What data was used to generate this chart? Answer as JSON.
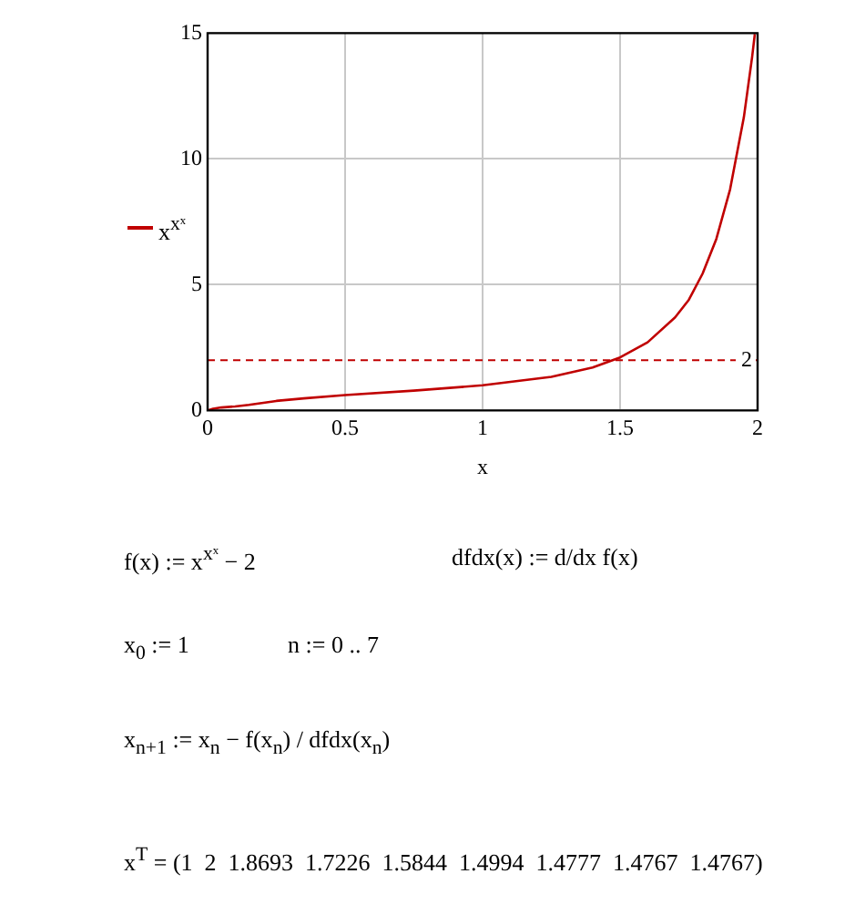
{
  "chart_data": {
    "type": "line",
    "xlabel": "x",
    "xlim": [
      0,
      2
    ],
    "xticks": [
      0,
      0.5,
      1,
      1.5,
      2
    ],
    "ylim": [
      0,
      15
    ],
    "yticks": [
      0,
      5,
      10,
      15
    ],
    "grid": true,
    "legend": "left",
    "marker": "none",
    "line_style": "solid",
    "series": [
      {
        "name": "x$^{xˣ}$",
        "color": "#c00000",
        "x": [
          0,
          0.02,
          0.05,
          0.1,
          0.15,
          0.25,
          0.35,
          0.5,
          0.75,
          1,
          1.25,
          1.4,
          1.5,
          1.6,
          1.7,
          1.75,
          1.8,
          1.85,
          1.9,
          1.95,
          1.98,
          1.99
        ],
        "values": [
          0,
          0.07,
          0.12,
          0.16,
          0.22,
          0.38,
          0.48,
          0.61,
          0.79,
          1,
          1.34,
          1.71,
          2.11,
          2.71,
          3.7,
          4.4,
          5.44,
          6.82,
          8.79,
          11.65,
          14.04,
          14.97
        ]
      }
    ],
    "ref_lines": [
      {
        "axis": "y",
        "value": 2,
        "label": "2",
        "color": "#c00000",
        "line_style": "dashed"
      }
    ],
    "annotations": [
      "f(x) := x$^{xˣ}$ − 2",
      "dfdx(x) := d/dx f(x)",
      "x$_{0}$ := 1",
      "n := 0 .. 7",
      "x$_{n+1}$ := x$_{n}$ − f(x$_{n}$) / dfdx(x$_{n}$)",
      "x$^{T}$ = (1  2  1.8693  1.7226  1.5844  1.4994  1.4777  1.4767  1.4767)"
    ]
  }
}
